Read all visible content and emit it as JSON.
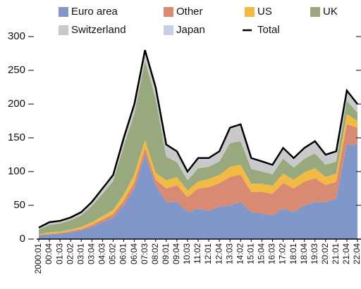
{
  "chart_data": {
    "type": "area",
    "stacked": true,
    "categories": [
      "2000:01",
      "00:04",
      "01:03",
      "02:02",
      "03:01",
      "03:04",
      "04:03",
      "05:02",
      "06:01",
      "06:04",
      "07:03",
      "08:02",
      "09:01",
      "09:04",
      "10:03",
      "11:02",
      "12:01",
      "12:04",
      "13:03",
      "14:02",
      "15:01",
      "15:04",
      "16:03",
      "17:02",
      "18:01",
      "18:04",
      "19:03",
      "20:02",
      "21:01",
      "21:04",
      "22:04"
    ],
    "series": [
      {
        "name": "Euro area",
        "color": "#8297c9",
        "values": [
          5,
          7,
          8,
          10,
          13,
          18,
          25,
          32,
          50,
          75,
          125,
          80,
          55,
          55,
          40,
          45,
          42,
          48,
          50,
          55,
          40,
          38,
          35,
          45,
          40,
          50,
          55,
          55,
          60,
          140,
          140
        ]
      },
      {
        "name": "Other",
        "color": "#d98a73",
        "values": [
          1,
          1,
          1,
          2,
          2,
          3,
          4,
          5,
          7,
          9,
          10,
          8,
          20,
          25,
          22,
          30,
          35,
          35,
          42,
          40,
          30,
          32,
          32,
          38,
          35,
          35,
          35,
          25,
          25,
          30,
          25
        ]
      },
      {
        "name": "US",
        "color": "#f1ba44",
        "values": [
          1,
          2,
          2,
          2,
          3,
          4,
          5,
          6,
          9,
          12,
          12,
          10,
          12,
          12,
          10,
          10,
          12,
          12,
          15,
          15,
          12,
          12,
          12,
          14,
          13,
          14,
          15,
          12,
          12,
          15,
          10
        ]
      },
      {
        "name": "UK",
        "color": "#97a97d",
        "values": [
          7,
          11,
          12,
          14,
          17,
          24,
          33,
          43,
          72,
          90,
          117,
          110,
          35,
          22,
          15,
          20,
          18,
          20,
          35,
          35,
          22,
          18,
          17,
          22,
          18,
          20,
          22,
          18,
          18,
          20,
          12
        ]
      },
      {
        "name": "Switzerland",
        "color": "#c9c9c9",
        "values": [
          2,
          3,
          3,
          3,
          4,
          5,
          6,
          7,
          9,
          11,
          13,
          14,
          15,
          13,
          10,
          12,
          10,
          12,
          20,
          22,
          13,
          12,
          11,
          13,
          11,
          13,
          15,
          12,
          12,
          12,
          10
        ]
      },
      {
        "name": "Japan",
        "color": "#c9cee7",
        "values": [
          1,
          1,
          1,
          1,
          1,
          1,
          2,
          2,
          3,
          3,
          3,
          3,
          3,
          3,
          3,
          3,
          3,
          3,
          3,
          3,
          3,
          3,
          3,
          3,
          3,
          3,
          3,
          3,
          3,
          3,
          3
        ]
      }
    ],
    "line_series": {
      "name": "Total",
      "color": "#000000",
      "values": [
        17,
        25,
        27,
        32,
        40,
        55,
        75,
        95,
        150,
        200,
        280,
        225,
        140,
        130,
        100,
        120,
        120,
        130,
        165,
        170,
        120,
        115,
        110,
        135,
        120,
        135,
        145,
        125,
        130,
        220,
        200
      ]
    },
    "ylim": [
      0,
      300
    ],
    "yticks": [
      0,
      50,
      100,
      150,
      200,
      250,
      300
    ]
  }
}
